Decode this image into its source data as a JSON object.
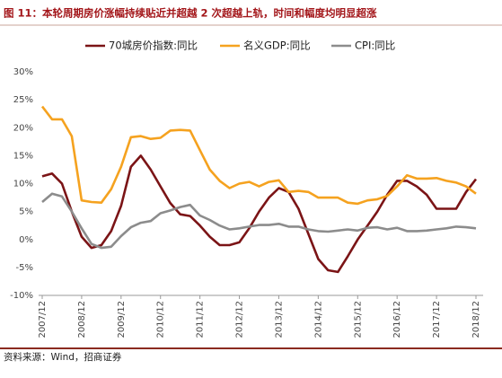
{
  "chart_data": {
    "type": "line",
    "title": "图 11：本轮周期房价涨幅持续贴近并超越 2 次超越上轨，时间和幅度均明显超涨",
    "source": "资料来源：Wind，招商证券",
    "categories": [
      "2007/12",
      null,
      null,
      null,
      "2008/12",
      null,
      null,
      null,
      "2009/12",
      null,
      null,
      null,
      "2010/12",
      null,
      null,
      null,
      "2011/12",
      null,
      null,
      null,
      "2012/12",
      null,
      null,
      null,
      "2013/12",
      null,
      null,
      null,
      "2014/12",
      null,
      null,
      null,
      "2015/12",
      null,
      null,
      null,
      "2016/12",
      null,
      null,
      null,
      "2017/12",
      null,
      null,
      null,
      "2018/12"
    ],
    "series": [
      {
        "name": "70城房价指数:同比",
        "color": "#7b1416",
        "values": [
          11.3,
          11.8,
          10,
          5,
          0.5,
          -1.5,
          -1,
          1.5,
          6,
          13,
          15,
          12.5,
          9.5,
          6.5,
          4.5,
          4.2,
          2.5,
          0.5,
          -1,
          -1,
          -0.5,
          2,
          5,
          7.5,
          9.2,
          8.5,
          5.5,
          1,
          -3.5,
          -5.5,
          -5.8,
          -3,
          0,
          2.5,
          5,
          8,
          10.5,
          10.5,
          9.5,
          8,
          5.5,
          5.5,
          5.5,
          8.5,
          10.8
        ]
      },
      {
        "name": "名义GDP:同比",
        "color": "#f5a21f",
        "values": [
          23.8,
          21.5,
          21.5,
          18.5,
          7,
          6.7,
          6.6,
          9,
          13,
          18.3,
          18.5,
          18,
          18.2,
          19.5,
          19.6,
          19.5,
          16,
          12.5,
          10.5,
          9.2,
          10,
          10.3,
          9.5,
          10.3,
          10.6,
          8.5,
          8.7,
          8.5,
          7.5,
          7.5,
          7.5,
          6.6,
          6.4,
          7,
          7.2,
          7.8,
          9.5,
          11.5,
          10.9,
          10.9,
          11,
          10.5,
          10.2,
          9.5,
          8.2
        ]
      },
      {
        "name": "CPI:同比",
        "color": "#8c8c8c",
        "values": [
          6.7,
          8.2,
          7.7,
          5,
          2,
          -0.8,
          -1.5,
          -1.3,
          0.6,
          2.2,
          3,
          3.3,
          4.7,
          5.2,
          5.8,
          6.2,
          4.3,
          3.5,
          2.5,
          1.8,
          2,
          2.3,
          2.6,
          2.6,
          2.8,
          2.3,
          2.3,
          1.8,
          1.5,
          1.4,
          1.6,
          1.8,
          1.6,
          2.1,
          2.2,
          1.8,
          2.1,
          1.5,
          1.5,
          1.6,
          1.8,
          2,
          2.3,
          2.2,
          2
        ]
      }
    ],
    "ylim": [
      -10,
      30
    ],
    "yticks": [
      {
        "value": -10,
        "label": "-10%"
      },
      {
        "value": -5,
        "label": "-5%"
      },
      {
        "value": 0,
        "label": "0%"
      },
      {
        "value": 5,
        "label": "5%"
      },
      {
        "value": 10,
        "label": "10%"
      },
      {
        "value": 15,
        "label": "15%"
      },
      {
        "value": 20,
        "label": "20%"
      },
      {
        "value": 25,
        "label": "25%"
      },
      {
        "value": 30,
        "label": "30%"
      }
    ],
    "grid": false,
    "legend": "top"
  }
}
